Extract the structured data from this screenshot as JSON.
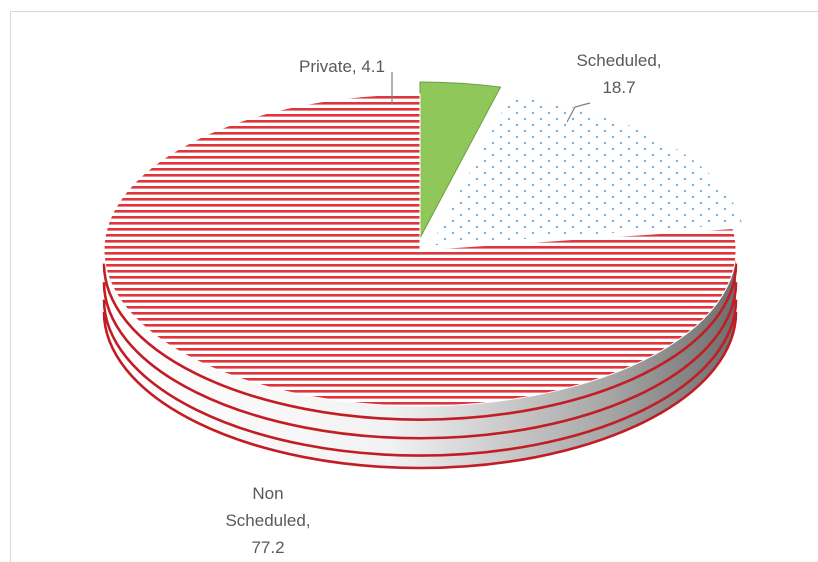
{
  "chart_data": {
    "type": "pie",
    "title": "",
    "slices": [
      {
        "label": "Private",
        "value": 4.1,
        "pattern": "solid",
        "color": "#8fc75b"
      },
      {
        "label": "Scheduled",
        "value": 18.7,
        "pattern": "dots",
        "color": "#7db2d6"
      },
      {
        "label": "Non Scheduled",
        "value": 77.2,
        "pattern": "horizontal-stripes",
        "color": "#e0343b"
      }
    ],
    "data_labels": [
      {
        "lines": [
          "Private, 4.1"
        ]
      },
      {
        "lines": [
          "Scheduled,",
          "18.7"
        ]
      },
      {
        "lines": [
          "Non",
          "Scheduled,",
          "77.2"
        ]
      }
    ],
    "style": "3d"
  }
}
